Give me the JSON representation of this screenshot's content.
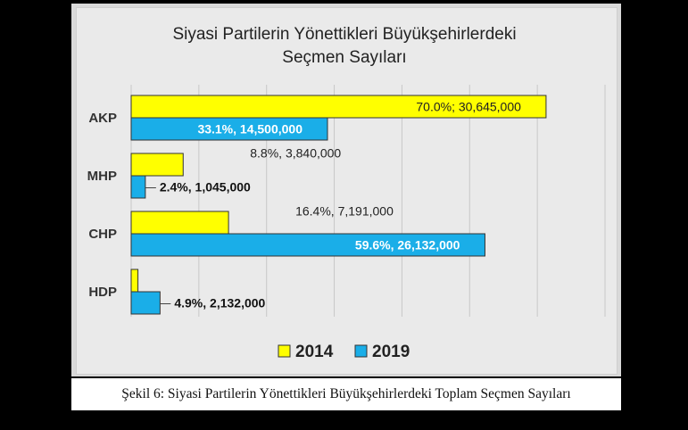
{
  "chart_data": {
    "type": "bar",
    "orientation": "horizontal",
    "title": [
      "Siyasi Partilerin Yönettikleri Büyükşehirlerdeki",
      "Seçmen Sayıları"
    ],
    "categories": [
      "AKP",
      "MHP",
      "CHP",
      "HDP"
    ],
    "series": [
      {
        "name": "2014",
        "color": "#ffff00",
        "values": [
          30645000,
          3840000,
          7191000,
          500000
        ],
        "labels": [
          "70.0%; 30,645,000",
          "8.8%, 3,840,000",
          "16.4%, 7,191,000",
          ""
        ]
      },
      {
        "name": "2019",
        "color": "#1aaee8",
        "values": [
          14500000,
          1045000,
          26132000,
          2132000
        ],
        "labels": [
          "33.1%, 14,500,000",
          "2.4%, 1,045,000",
          "59.6%, 26,132,000",
          "4.9%, 2,132,000"
        ]
      }
    ],
    "xlim": [
      0,
      35000000
    ],
    "grid": true,
    "legend_position": "bottom"
  },
  "caption": "Şekil 6: Siyasi Partilerin Yönettikleri Büyükşehirlerdeki Toplam Seçmen Sayıları"
}
